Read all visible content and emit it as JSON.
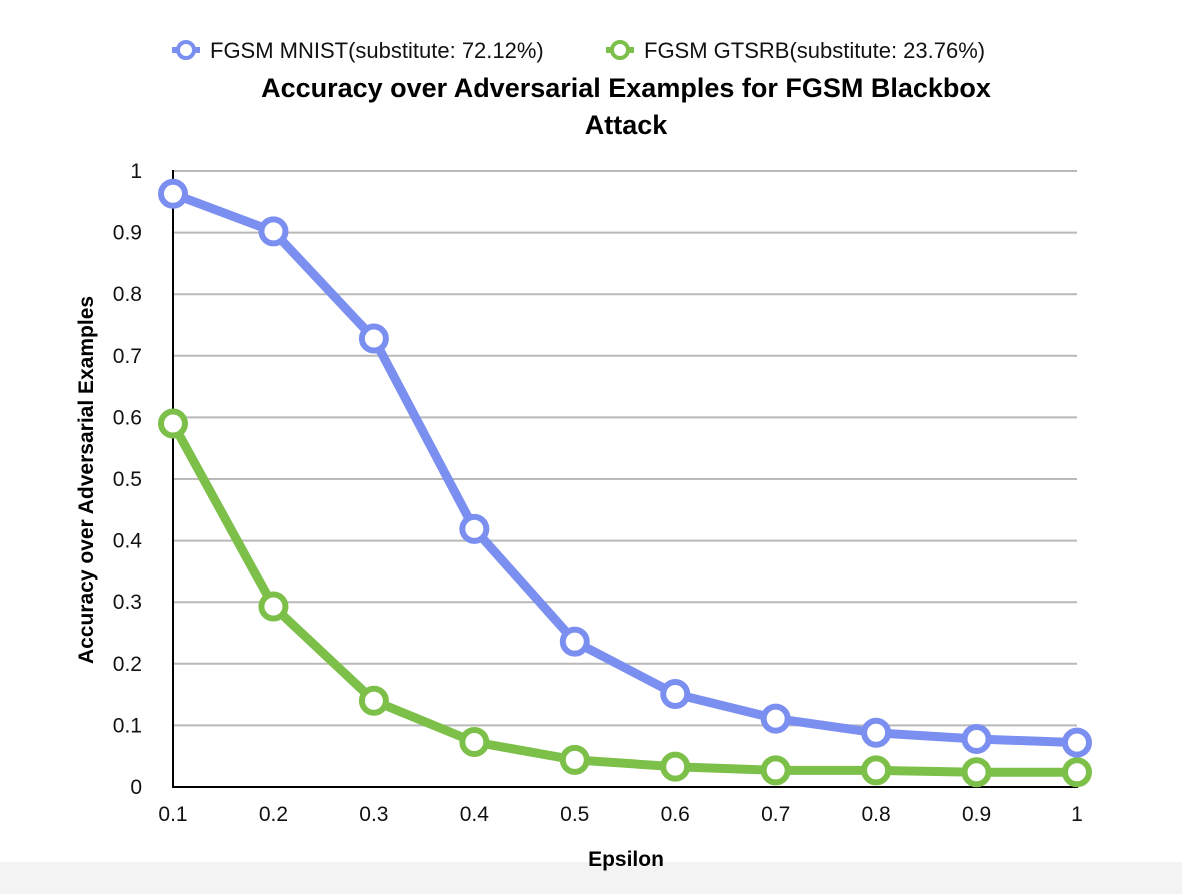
{
  "chart_data": {
    "type": "line",
    "title_lines": [
      "Accuracy over Adversarial Examples for FGSM Blackbox",
      "Attack"
    ],
    "xlabel": "Epsilon",
    "ylabel": "Accuracy over Adversarial Examples",
    "x": [
      0.1,
      0.2,
      0.3,
      0.4,
      0.5,
      0.6,
      0.7,
      0.8,
      0.9,
      1
    ],
    "x_tick_labels": [
      "0.1",
      "0.2",
      "0.3",
      "0.4",
      "0.5",
      "0.6",
      "0.7",
      "0.8",
      "0.9",
      "1"
    ],
    "y_ticks": [
      0,
      0.1,
      0.2,
      0.3,
      0.4,
      0.5,
      0.6,
      0.7,
      0.8,
      0.9,
      1
    ],
    "y_tick_labels": [
      "0",
      "0.1",
      "0.2",
      "0.3",
      "0.4",
      "0.5",
      "0.6",
      "0.7",
      "0.8",
      "0.9",
      "1"
    ],
    "ylim": [
      0,
      1
    ],
    "grid": true,
    "legend_position": "top",
    "series": [
      {
        "name": "FGSM MNIST(substitute: 72.12%)",
        "color": "#7b8ff0",
        "values": [
          0.963,
          0.902,
          0.728,
          0.419,
          0.236,
          0.151,
          0.111,
          0.088,
          0.078,
          0.072
        ]
      },
      {
        "name": "FGSM GTSRB(substitute: 23.76%)",
        "color": "#7cc04a",
        "values": [
          0.59,
          0.293,
          0.14,
          0.073,
          0.044,
          0.033,
          0.027,
          0.027,
          0.024,
          0.024
        ]
      }
    ]
  }
}
